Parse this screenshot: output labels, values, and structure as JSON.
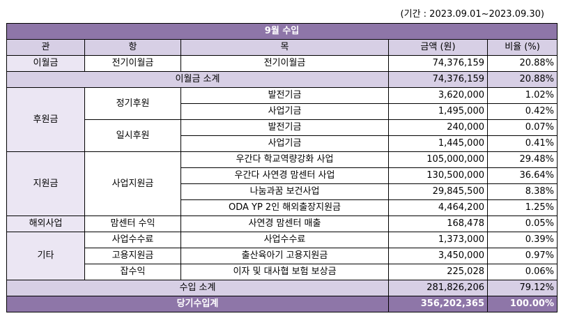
{
  "period": "(기간 : 2023.09.01~2023.09.30)",
  "title": "9월 수입",
  "headers": {
    "gwan": "관",
    "hang": "항",
    "mok": "목",
    "amount": "금액 (원)",
    "ratio": "비율 (%)"
  },
  "rows": [
    {
      "gwan": "이월금",
      "hang": "전기이월금",
      "mok": "전기이월금",
      "amount": "74,376,159",
      "ratio": "20.88%"
    },
    {
      "gwan": "",
      "hang": "",
      "mok": "이월금 소계",
      "amount": "74,376,159",
      "ratio": "20.88%"
    },
    {
      "gwan": "후원금",
      "hang": "정기후원",
      "mok": "발전기금",
      "amount": "3,620,000",
      "ratio": "1.02%"
    },
    {
      "gwan": "",
      "hang": "",
      "mok": "사업기금",
      "amount": "1,495,000",
      "ratio": "0.42%"
    },
    {
      "gwan": "",
      "hang": "일시후원",
      "mok": "발전기금",
      "amount": "240,000",
      "ratio": "0.07%"
    },
    {
      "gwan": "",
      "hang": "",
      "mok": "사업기금",
      "amount": "1,445,000",
      "ratio": "0.41%"
    },
    {
      "gwan": "지원금",
      "hang": "사업지원금",
      "mok": "우간다 학교역량강화 사업",
      "amount": "105,000,000",
      "ratio": "29.48%"
    },
    {
      "gwan": "",
      "hang": "",
      "mok": "우간다 사연경 맘센터 사업",
      "amount": "130,500,000",
      "ratio": "36.64%"
    },
    {
      "gwan": "",
      "hang": "",
      "mok": "나눔과꿈 보건사업",
      "amount": "29,845,500",
      "ratio": "8.38%"
    },
    {
      "gwan": "",
      "hang": "",
      "mok": "ODA YP 2인 해외출장지원금",
      "amount": "4,464,200",
      "ratio": "1.25%"
    },
    {
      "gwan": "해외사업",
      "hang": "맘센터 수익",
      "mok": "사연경 맘센터 매출",
      "amount": "168,478",
      "ratio": "0.05%"
    },
    {
      "gwan": "기타",
      "hang": "사업수수료",
      "mok": "사업수수료",
      "amount": "1,373,000",
      "ratio": "0.39%"
    },
    {
      "gwan": "",
      "hang": "고용지원금",
      "mok": "출산육아기 고용지원금",
      "amount": "3,450,000",
      "ratio": "0.97%"
    },
    {
      "gwan": "",
      "hang": "잡수익",
      "mok": "이자 및 대사협 보험 보상금",
      "amount": "225,028",
      "ratio": "0.06%"
    },
    {
      "gwan": "",
      "hang": "",
      "mok": "수입 소계",
      "amount": "281,826,206",
      "ratio": "79.12%"
    },
    {
      "gwan": "",
      "hang": "",
      "mok": "당기수입계",
      "amount": "356,202,365",
      "ratio": "100.00%"
    }
  ]
}
